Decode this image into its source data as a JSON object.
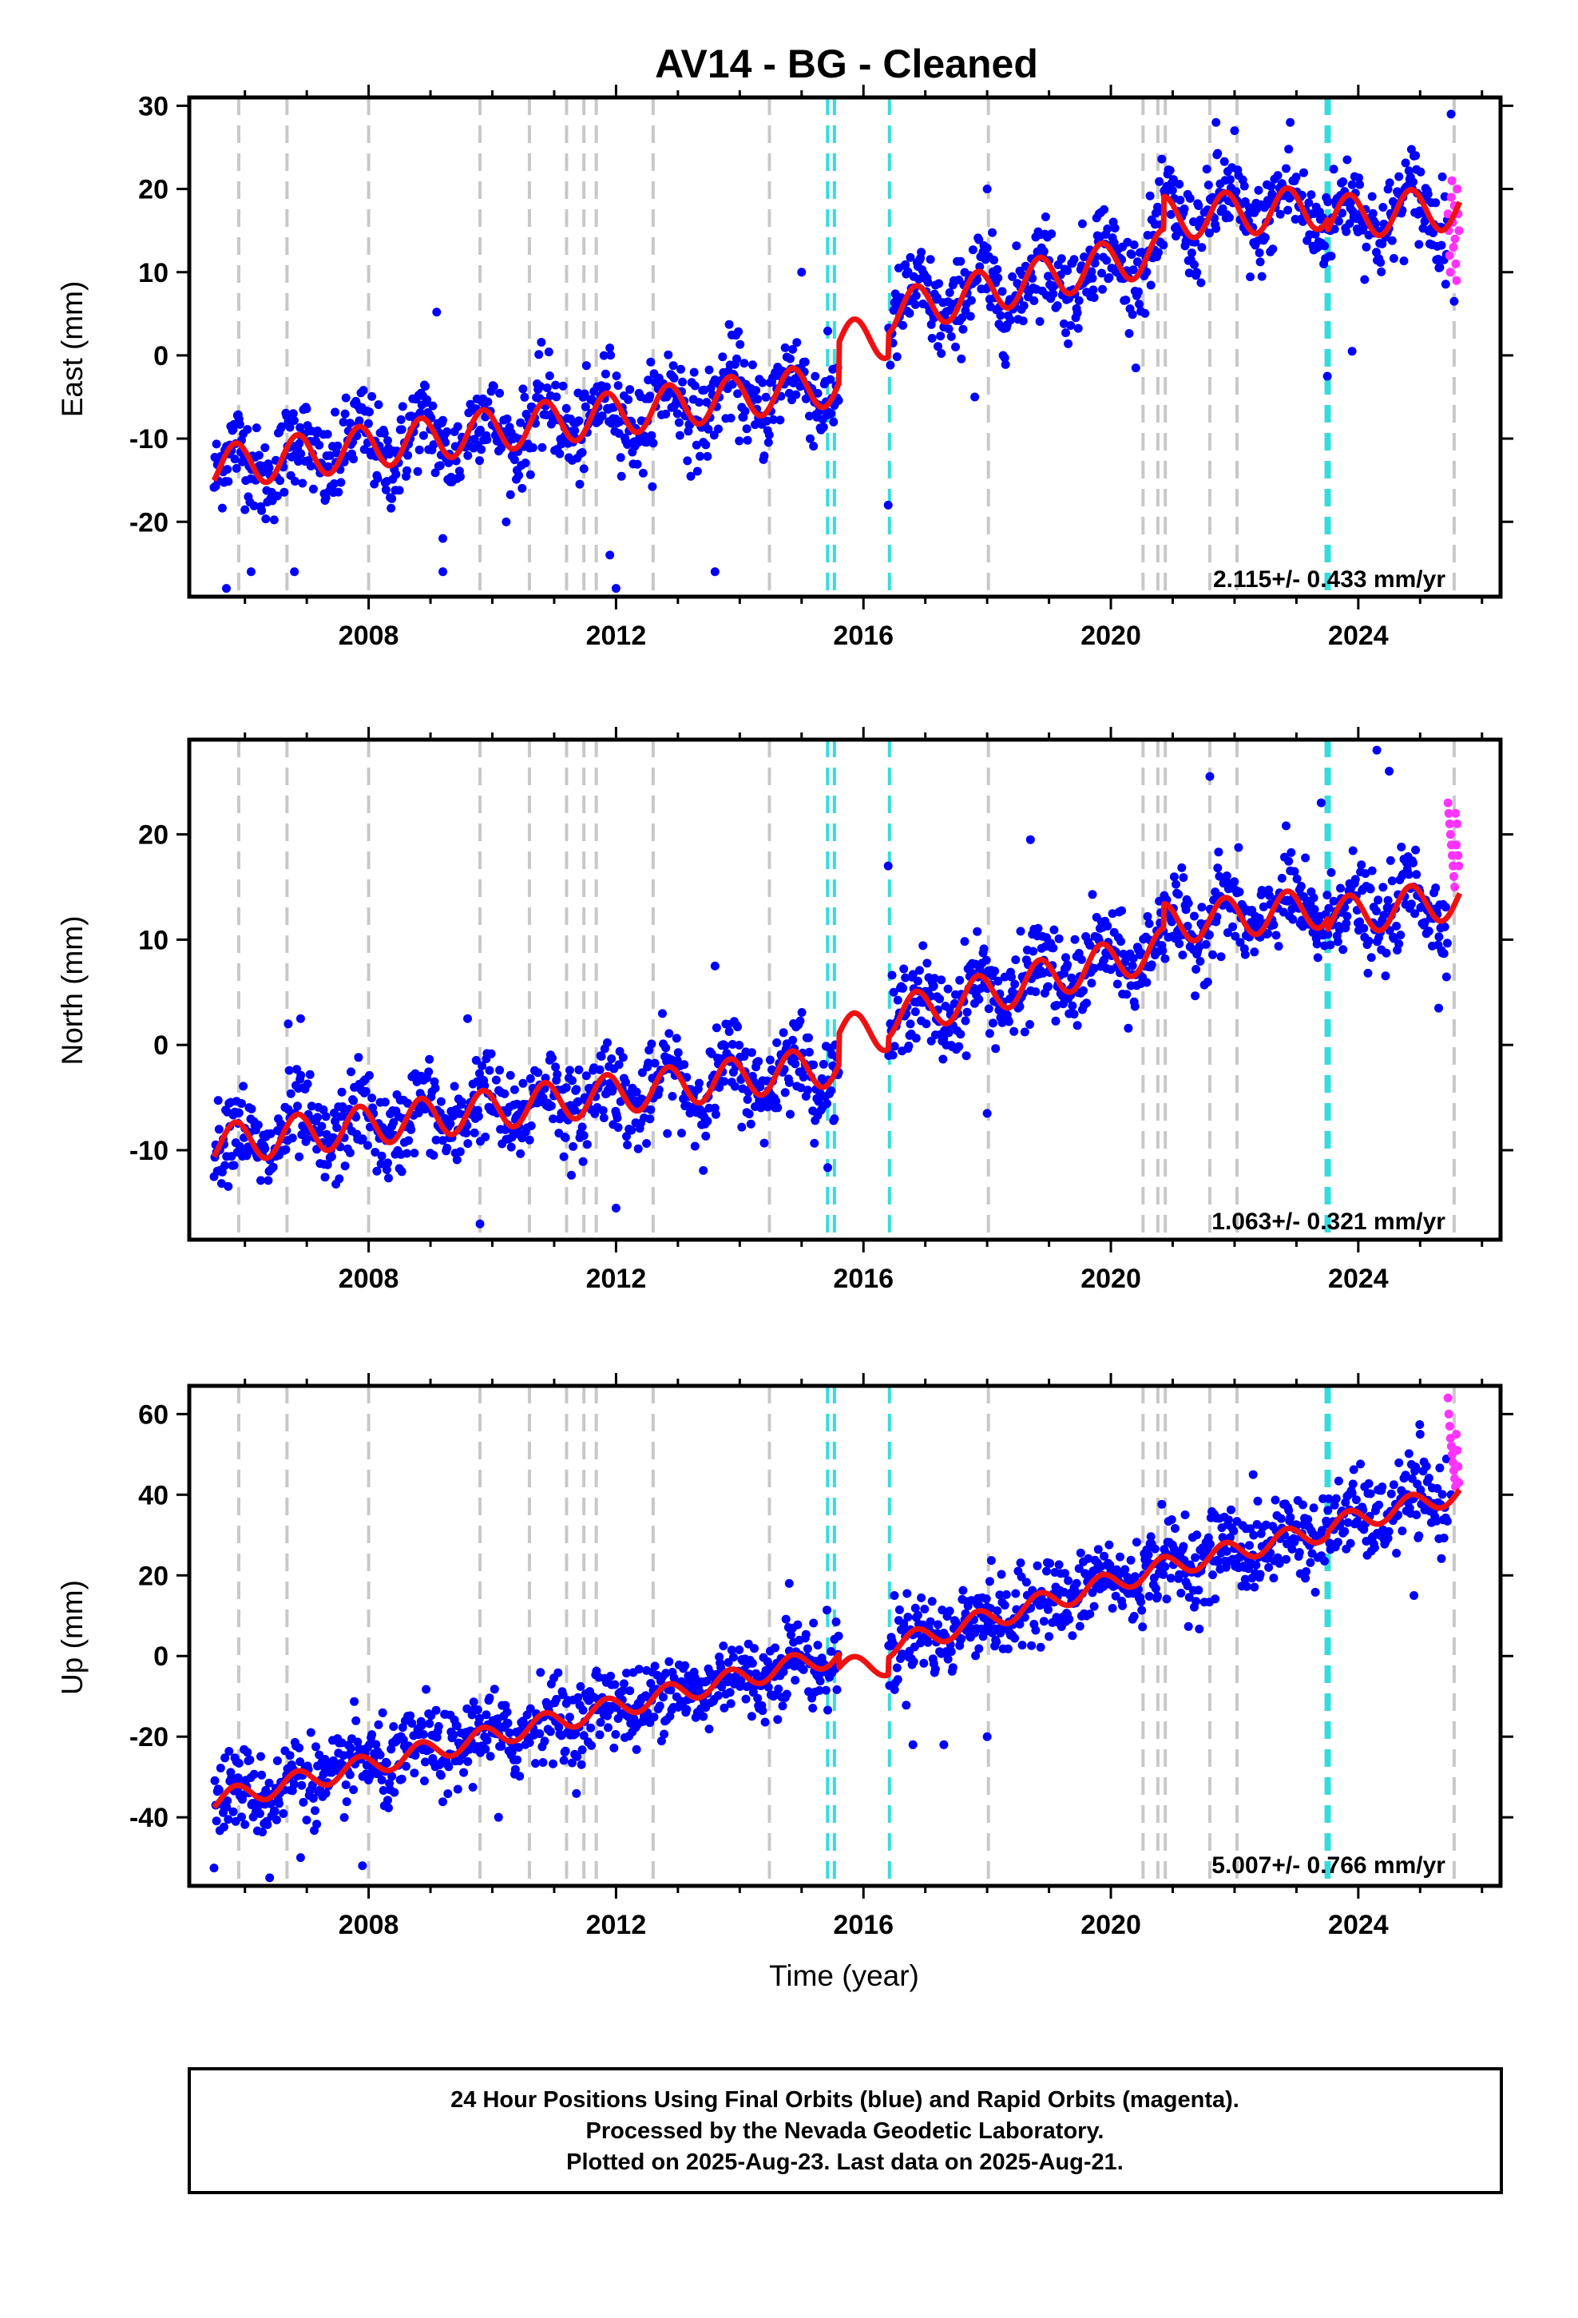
{
  "chart_data": {
    "title": "AV14  - BG - Cleaned",
    "type": "scatter",
    "xlabel": "Time (year)",
    "xlim": [
      2005.1,
      2026.3
    ],
    "x_ticks": [
      2008,
      2012,
      2016,
      2020,
      2024
    ],
    "colors": {
      "final_orbits": "#0000ff",
      "rapid_orbits": "#ff33ff",
      "model": "#ee1111",
      "gray_lines": "#c8c8c8",
      "cyan_lines": "#33dddd"
    },
    "gray_event_lines": [
      2005.9,
      2006.68,
      2008.0,
      2009.8,
      2010.6,
      2011.2,
      2011.48,
      2011.68,
      2012.6,
      2014.48,
      2018.02,
      2020.52,
      2020.76,
      2020.88,
      2021.6,
      2022.04,
      2025.55
    ],
    "cyan_event_lines": [
      2015.42,
      2015.53,
      2016.42,
      2023.48,
      2023.53
    ],
    "data_gap": [
      2015.6,
      2016.4
    ],
    "rapid_start": 2025.45,
    "data_end": 2025.64,
    "panels": [
      {
        "id": "east",
        "ylabel": "East (mm)",
        "ylim": [
          -29,
          31
        ],
        "yticks": [
          -20,
          -10,
          0,
          10,
          20,
          30
        ],
        "rate": "2.115+/- 0.433 mm/yr",
        "trend_rate": 2.115,
        "model_pieces": [
          {
            "x0": 2005.5,
            "x1": 2015.6,
            "v0": -13.5,
            "rate": 1.0
          },
          {
            "x0": 2015.6,
            "x1": 2016.4,
            "v0": 1.5,
            "rate": 1.0
          },
          {
            "x0": 2016.4,
            "x1": 2020.85,
            "v0": 5.0,
            "rate": 1.7
          },
          {
            "x0": 2020.85,
            "x1": 2023.5,
            "v0": 16.5,
            "rate": 0.5
          },
          {
            "x0": 2023.5,
            "x1": 2025.62,
            "v0": 16.5,
            "rate": 0.6
          }
        ],
        "seasonal_amplitude": 2.6,
        "scatter_sd": 2.7,
        "outliers": [
          [
            2005.7,
            -28
          ],
          [
            2006.1,
            -26
          ],
          [
            2006.8,
            -26
          ],
          [
            2009.2,
            -26
          ],
          [
            2009.2,
            -22
          ],
          [
            2012.0,
            -28
          ],
          [
            2011.9,
            -24
          ],
          [
            2013.6,
            -26
          ],
          [
            2016.4,
            -18
          ],
          [
            2009.1,
            5.2
          ],
          [
            2018.0,
            20
          ],
          [
            2021.7,
            28
          ],
          [
            2022.0,
            27
          ],
          [
            2022.9,
            28
          ],
          [
            2025.5,
            29
          ],
          [
            2025.55,
            6.5
          ],
          [
            2023.5,
            -2.5
          ],
          [
            2023.9,
            0.5
          ],
          [
            2017.8,
            -5
          ],
          [
            2015.0,
            10
          ]
        ],
        "rapid_values": [
          17,
          15,
          12,
          10,
          19,
          21,
          16,
          13,
          18,
          14,
          11,
          9,
          20,
          17,
          15
        ]
      },
      {
        "id": "north",
        "ylabel": "North (mm)",
        "ylim": [
          -18.5,
          29
        ],
        "yticks": [
          -10,
          0,
          10,
          20
        ],
        "rate": "1.063+/- 0.321 mm/yr",
        "trend_rate": 1.063,
        "model_pieces": [
          {
            "x0": 2005.5,
            "x1": 2015.6,
            "v0": -9.5,
            "rate": 0.75
          },
          {
            "x0": 2015.6,
            "x1": 2016.4,
            "v0": 1.0,
            "rate": 0.5
          },
          {
            "x0": 2016.4,
            "x1": 2020.85,
            "v0": 2.5,
            "rate": 1.5
          },
          {
            "x0": 2020.85,
            "x1": 2023.5,
            "v0": 11.5,
            "rate": 0.6
          },
          {
            "x0": 2023.5,
            "x1": 2025.62,
            "v0": 12.0,
            "rate": 0.9
          }
        ],
        "seasonal_amplitude": 1.9,
        "scatter_sd": 2.1,
        "outliers": [
          [
            2006.9,
            2.5
          ],
          [
            2006.7,
            2.0
          ],
          [
            2009.8,
            -17
          ],
          [
            2012.0,
            -15.5
          ],
          [
            2016.4,
            17
          ],
          [
            2018.0,
            -6.5
          ],
          [
            2021.6,
            25.5
          ],
          [
            2023.4,
            23
          ],
          [
            2024.3,
            28
          ],
          [
            2024.5,
            26
          ],
          [
            2025.3,
            3.5
          ],
          [
            2013.6,
            7.5
          ],
          [
            2009.6,
            2.5
          ],
          [
            2018.7,
            19.5
          ]
        ],
        "rapid_values": [
          23,
          22,
          21,
          20,
          19,
          18,
          17,
          16,
          15,
          22,
          19,
          21,
          18,
          17
        ]
      },
      {
        "id": "up",
        "ylabel": "Up (mm)",
        "ylim": [
          -57,
          67
        ],
        "yticks": [
          -40,
          -20,
          0,
          20,
          40,
          60
        ],
        "rate": "5.007+/- 0.766 mm/yr",
        "trend_rate": 5.007,
        "model_pieces": [
          {
            "x0": 2005.5,
            "x1": 2015.6,
            "v0": -36,
            "rate": 3.6
          },
          {
            "x0": 2015.6,
            "x1": 2016.4,
            "v0": -3,
            "rate": 1.0
          },
          {
            "x0": 2016.4,
            "x1": 2020.85,
            "v0": 2,
            "rate": 4.5
          },
          {
            "x0": 2020.85,
            "x1": 2023.5,
            "v0": 22,
            "rate": 3.5
          },
          {
            "x0": 2023.5,
            "x1": 2025.62,
            "v0": 32,
            "rate": 4.0
          }
        ],
        "seasonal_amplitude": 2.6,
        "scatter_sd": 5.0,
        "outliers": [
          [
            2006.4,
            -55
          ],
          [
            2007.9,
            -52
          ],
          [
            2006.9,
            -50
          ],
          [
            2014.8,
            18
          ],
          [
            2016.8,
            -22
          ],
          [
            2017.3,
            -22
          ],
          [
            2018.0,
            -20
          ],
          [
            2016.5,
            15
          ],
          [
            2021.2,
            35
          ],
          [
            2022.3,
            45
          ],
          [
            2025.0,
            55
          ],
          [
            2025.5,
            40
          ],
          [
            2024.9,
            15
          ],
          [
            2010.1,
            -40
          ]
        ],
        "rapid_values": [
          64,
          60,
          57,
          54,
          52,
          50,
          48,
          46,
          44,
          42,
          55,
          51,
          47,
          43
        ]
      }
    ],
    "footnote": [
      "24 Hour Positions Using Final Orbits (blue) and Rapid Orbits (magenta).",
      "Processed by the Nevada Geodetic Laboratory.",
      "Plotted on 2025-Aug-23. Last data on 2025-Aug-21."
    ]
  }
}
